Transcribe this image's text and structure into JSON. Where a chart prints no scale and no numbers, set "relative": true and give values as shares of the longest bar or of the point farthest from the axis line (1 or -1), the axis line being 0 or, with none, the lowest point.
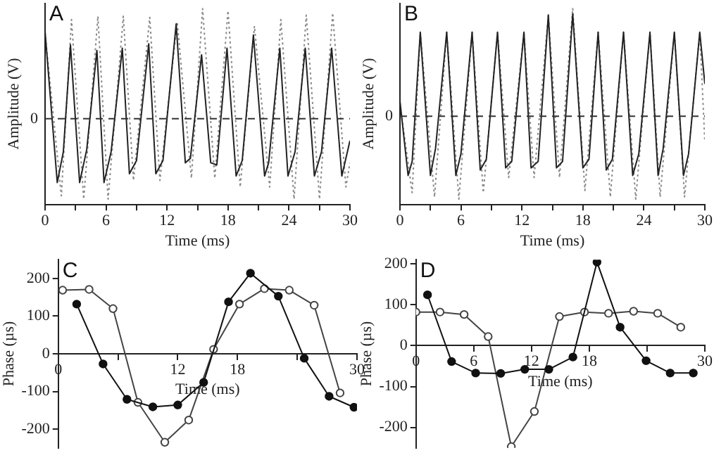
{
  "chart_data": [
    {
      "type": "line",
      "relative": true,
      "annotations": [
        "A"
      ],
      "xlabel": "Time (ms)",
      "ylabel": "Amplitude (V)",
      "xlim": [
        0,
        30
      ],
      "xticks": [
        0,
        {
          "value": 3,
          "label": null
        },
        6,
        {
          "value": 9,
          "label": null
        },
        12,
        {
          "value": 15,
          "label": null
        },
        18,
        {
          "value": 21,
          "label": null
        },
        24,
        {
          "value": 27,
          "label": null
        },
        30
      ],
      "ref_lines": [
        {
          "axis": "y",
          "value": 0,
          "label": "0",
          "line_style": "dashed"
        }
      ],
      "legend": false,
      "marker": "none",
      "series": [
        {
          "color": "#222222",
          "line_style": "solid",
          "x": [
            0,
            1.2,
            1.8,
            2.5,
            3.4,
            4.1,
            5.1,
            5.8,
            6.5,
            7.6,
            8.3,
            9.0,
            10.2,
            10.9,
            11.6,
            12.9,
            13.8,
            14.3,
            15.4,
            16.3,
            16.9,
            17.9,
            18.8,
            19.4,
            20.5,
            21.6,
            22.0,
            23.1,
            23.9,
            24.6,
            25.6,
            26.5,
            27.2,
            28.2,
            29.2,
            30
          ],
          "values": [
            0.79,
            -0.58,
            -0.3,
            0.67,
            -0.58,
            -0.28,
            0.62,
            -0.58,
            -0.3,
            0.64,
            -0.5,
            -0.38,
            0.68,
            -0.5,
            -0.38,
            0.86,
            -0.4,
            -0.36,
            0.58,
            -0.4,
            -0.42,
            0.64,
            -0.52,
            -0.38,
            0.76,
            -0.52,
            -0.4,
            0.64,
            -0.52,
            -0.3,
            0.64,
            -0.52,
            -0.3,
            0.64,
            -0.52,
            -0.2
          ]
        },
        {
          "color": "#8a8a8a",
          "line_style": "dotted",
          "x": [
            0,
            1.6,
            2.6,
            3.8,
            5.2,
            6.2,
            7.7,
            8.7,
            10.3,
            11.3,
            13.0,
            14.4,
            15.5,
            16.7,
            18.0,
            19.2,
            20.6,
            22.1,
            23.2,
            24.5,
            25.7,
            27.0,
            28.3,
            29.6,
            30
          ],
          "values": [
            0.78,
            -0.7,
            0.9,
            -0.73,
            0.93,
            -0.73,
            0.93,
            -0.56,
            0.92,
            -0.56,
            0.88,
            -0.54,
            1.0,
            -0.54,
            0.98,
            -0.62,
            0.84,
            -0.62,
            0.9,
            -0.73,
            0.94,
            -0.73,
            0.96,
            -0.62,
            -0.4
          ]
        }
      ]
    },
    {
      "type": "line",
      "relative": true,
      "annotations": [
        "B"
      ],
      "xlabel": "Time (ms)",
      "ylabel": "Amplitude (V)",
      "xlim": [
        0,
        30
      ],
      "xticks": [
        0,
        {
          "value": 3,
          "label": null
        },
        6,
        {
          "value": 9,
          "label": null
        },
        12,
        {
          "value": 15,
          "label": null
        },
        18,
        {
          "value": 21,
          "label": null
        },
        24,
        {
          "value": 27,
          "label": null
        },
        30
      ],
      "ref_lines": [
        {
          "axis": "y",
          "value": 0,
          "label": "0",
          "line_style": "dashed"
        }
      ],
      "legend": false,
      "marker": "none",
      "series": [
        {
          "color": "#222222",
          "line_style": "solid",
          "x": [
            0,
            0.8,
            1.2,
            2.0,
            3.0,
            3.5,
            4.6,
            5.5,
            6.0,
            7.1,
            7.9,
            8.5,
            9.6,
            10.4,
            11.0,
            12.2,
            12.9,
            13.6,
            14.6,
            15.4,
            16.0,
            17.0,
            18.0,
            18.6,
            19.5,
            20.3,
            20.9,
            22.0,
            22.9,
            23.5,
            24.6,
            25.4,
            25.9,
            27.0,
            27.9,
            28.4,
            29.5,
            30
          ],
          "values": [
            0.14,
            -0.55,
            -0.42,
            0.78,
            -0.55,
            -0.3,
            0.78,
            -0.55,
            -0.35,
            0.78,
            -0.5,
            -0.4,
            0.78,
            -0.48,
            -0.42,
            0.78,
            -0.48,
            -0.42,
            0.94,
            -0.48,
            -0.42,
            0.95,
            -0.48,
            -0.4,
            0.78,
            -0.5,
            -0.4,
            0.78,
            -0.55,
            -0.35,
            0.78,
            -0.55,
            -0.3,
            0.78,
            -0.55,
            -0.35,
            0.78,
            0.3
          ]
        },
        {
          "color": "#8a8a8a",
          "line_style": "dotted",
          "x": [
            0,
            1.2,
            2.0,
            3.4,
            4.6,
            5.8,
            7.1,
            8.2,
            9.6,
            10.7,
            12.2,
            13.2,
            14.6,
            15.7,
            17.0,
            18.2,
            19.5,
            20.7,
            22.0,
            23.2,
            24.6,
            25.6,
            27.0,
            28.0,
            29.5,
            30
          ],
          "values": [
            0.12,
            -0.71,
            0.78,
            -0.75,
            0.78,
            -0.77,
            0.78,
            -0.71,
            0.78,
            -0.57,
            0.78,
            -0.57,
            0.94,
            -0.57,
            1.0,
            -0.69,
            0.78,
            -0.75,
            0.78,
            -0.77,
            0.78,
            -0.75,
            0.78,
            -0.75,
            0.78,
            -0.24
          ]
        }
      ]
    },
    {
      "type": "line",
      "annotations": [
        "C"
      ],
      "xlabel": "Time (ms)",
      "ylabel": "Phase (µs)",
      "xlim": [
        0,
        30
      ],
      "xticks": [
        0,
        {
          "value": 6,
          "label": null
        },
        12,
        18,
        {
          "value": 24,
          "label": null
        },
        30
      ],
      "ylim": [
        -250,
        250
      ],
      "yticks": [
        -200,
        -100,
        0,
        100,
        200
      ],
      "legend": false,
      "marker": "circle",
      "series": [
        {
          "color": "#111111",
          "x": [
            1.85,
            4.5,
            6.9,
            9.5,
            12.0,
            14.6,
            17.1,
            19.3,
            22.1,
            24.7,
            27.2,
            29.7
          ],
          "values": [
            132,
            -27,
            -121,
            -141,
            -136,
            -76,
            138,
            214,
            153,
            -12,
            -113,
            -142
          ]
        },
        {
          "color": "#444444",
          "x": [
            0.44,
            3.1,
            5.5,
            8.0,
            10.7,
            13.1,
            15.6,
            18.2,
            20.7,
            23.2,
            25.7,
            28.3
          ],
          "values": [
            169,
            171,
            120,
            -129,
            -235,
            -176,
            12,
            132,
            173,
            169,
            129,
            -104
          ]
        }
      ]
    },
    {
      "type": "line",
      "annotations": [
        "D"
      ],
      "xlabel": "Time (ms)",
      "ylabel": "Phase (µs)",
      "xlim": [
        0,
        30
      ],
      "xticks": [
        0,
        6,
        12,
        18,
        {
          "value": 24,
          "label": null
        },
        30
      ],
      "ylim": [
        -250,
        210
      ],
      "yticks": [
        -200,
        -100,
        0,
        100,
        200
      ],
      "legend": false,
      "marker": "circle",
      "series": [
        {
          "color": "#111111",
          "x": [
            1.2,
            3.7,
            6.2,
            8.8,
            11.3,
            13.8,
            16.3,
            18.8,
            21.2,
            23.9,
            26.4,
            28.8
          ],
          "values": [
            124,
            -39,
            -67,
            -68,
            -58,
            -58,
            -28,
            204,
            45,
            -37,
            -67,
            -67
          ]
        },
        {
          "color": "#444444",
          "x": [
            0,
            2.5,
            5.0,
            7.5,
            9.9,
            12.3,
            14.9,
            17.5,
            20.0,
            22.6,
            25.1,
            27.5
          ],
          "values": [
            82,
            82,
            76,
            22,
            -247,
            -161,
            71,
            82,
            79,
            84,
            79,
            45
          ]
        }
      ]
    }
  ]
}
